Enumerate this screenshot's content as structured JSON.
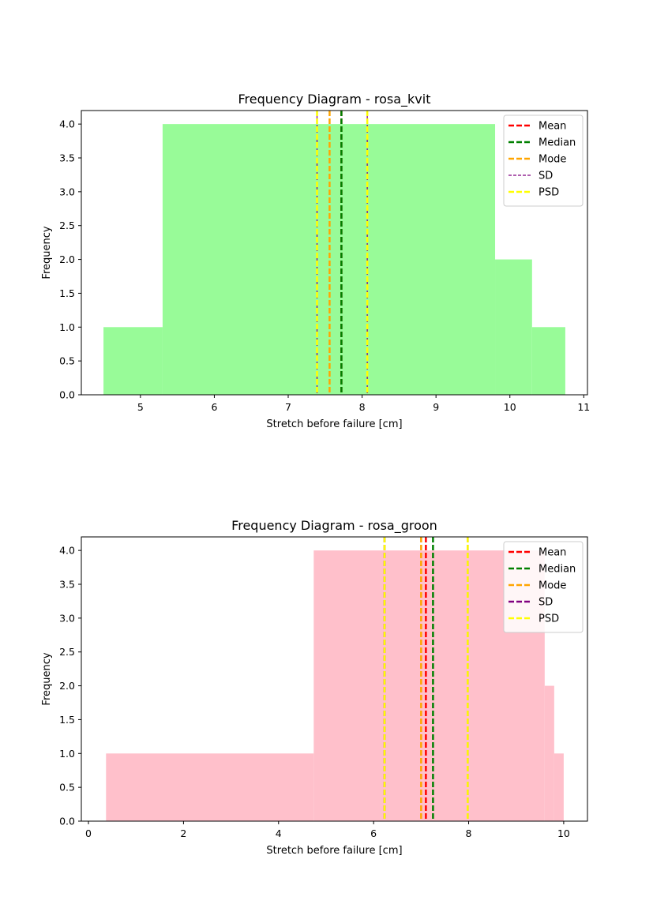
{
  "chart_data": [
    {
      "type": "bar",
      "title": "Frequency Diagram - rosa_kvit",
      "xlabel": "Stretch before failure [cm]",
      "ylabel": "Frequency",
      "xlim": [
        4.2,
        11.05
      ],
      "ylim": [
        0,
        4.2
      ],
      "xticks": [
        "5",
        "6",
        "7",
        "8",
        "9",
        "10",
        "11"
      ],
      "xtick_values": [
        5,
        6,
        7,
        8,
        9,
        10,
        11
      ],
      "yticks": [
        "0.0",
        "0.5",
        "1.0",
        "1.5",
        "2.0",
        "2.5",
        "3.0",
        "3.5",
        "4.0"
      ],
      "ytick_values": [
        0,
        0.5,
        1,
        1.5,
        2,
        2.5,
        3,
        3.5,
        4
      ],
      "bar_color": "#98fb98",
      "bins": [
        {
          "x0": 4.5,
          "x1": 5.3,
          "count": 1
        },
        {
          "x0": 5.3,
          "x1": 9.8,
          "count": 4
        },
        {
          "x0": 9.8,
          "x1": 10.3,
          "count": 2
        },
        {
          "x0": 10.3,
          "x1": 10.75,
          "count": 1
        }
      ],
      "lines": [
        {
          "name": "Mean",
          "x": [
            7.72
          ],
          "color": "#ff0000",
          "style": "dashed"
        },
        {
          "name": "Median",
          "x": [
            7.72
          ],
          "color": "#008000",
          "style": "dashed"
        },
        {
          "name": "Mode",
          "x": [
            7.56
          ],
          "color": "#ffa500",
          "style": "dashed"
        },
        {
          "name": "SD",
          "x": [
            7.39,
            8.07
          ],
          "color": "#800080",
          "style": "thin-dashed"
        },
        {
          "name": "PSD",
          "x": [
            7.39,
            8.07
          ],
          "color": "#ffff00",
          "style": "dashed"
        }
      ],
      "legend": "top-right",
      "grid": false
    },
    {
      "type": "bar",
      "title": "Frequency Diagram - rosa_groon",
      "xlabel": "Stretch before failure [cm]",
      "ylabel": "Frequency",
      "xlim": [
        -0.15,
        10.5
      ],
      "ylim": [
        0,
        4.2
      ],
      "xticks": [
        "0",
        "2",
        "4",
        "6",
        "8",
        "10"
      ],
      "xtick_values": [
        0,
        2,
        4,
        6,
        8,
        10
      ],
      "yticks": [
        "0.0",
        "0.5",
        "1.0",
        "1.5",
        "2.0",
        "2.5",
        "3.0",
        "3.5",
        "4.0"
      ],
      "ytick_values": [
        0,
        0.5,
        1,
        1.5,
        2,
        2.5,
        3,
        3.5,
        4
      ],
      "bar_color": "#ffc0cb",
      "bins": [
        {
          "x0": 0.37,
          "x1": 4.74,
          "count": 1
        },
        {
          "x0": 4.74,
          "x1": 9.6,
          "count": 4
        },
        {
          "x0": 9.6,
          "x1": 9.8,
          "count": 2
        },
        {
          "x0": 9.8,
          "x1": 10.0,
          "count": 1
        }
      ],
      "lines": [
        {
          "name": "Mean",
          "x": [
            7.1
          ],
          "color": "#ff0000",
          "style": "dashed"
        },
        {
          "name": "Median",
          "x": [
            7.25
          ],
          "color": "#008000",
          "style": "dashed"
        },
        {
          "name": "Mode",
          "x": [
            7.0
          ],
          "color": "#ffa500",
          "style": "dashed"
        },
        {
          "name": "SD",
          "x": [
            6.23,
            7.98
          ],
          "color": "#800080",
          "style": "dashed"
        },
        {
          "name": "PSD",
          "x": [
            6.23,
            7.98
          ],
          "color": "#ffff00",
          "style": "dashed"
        }
      ],
      "legend": "top-right",
      "grid": false
    }
  ]
}
